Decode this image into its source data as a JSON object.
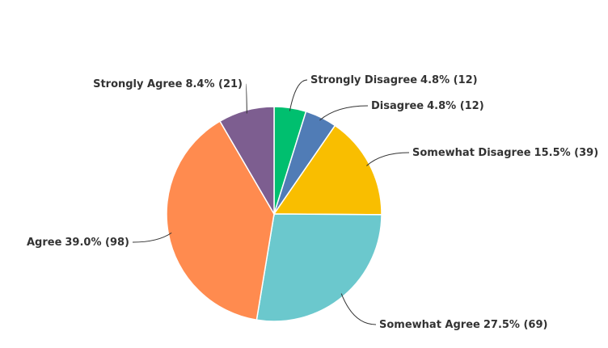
{
  "chart_data": {
    "type": "pie",
    "categories": [
      "Strongly Disagree",
      "Disagree",
      "Somewhat Disagree",
      "Somewhat Agree",
      "Agree",
      "Strongly Agree"
    ],
    "values": [
      4.8,
      4.8,
      15.5,
      27.5,
      39.0,
      8.4
    ],
    "value_labels": [
      "4.8% (12)",
      "4.8% (12)",
      "15.5% (39)",
      "27.5% (69)",
      "39.0% (98)",
      "8.4% (21)"
    ],
    "colors": [
      "#00bf6f",
      "#507cb6",
      "#f9be00",
      "#6bc8cd",
      "#ff8b4f",
      "#7d5e90"
    ]
  }
}
